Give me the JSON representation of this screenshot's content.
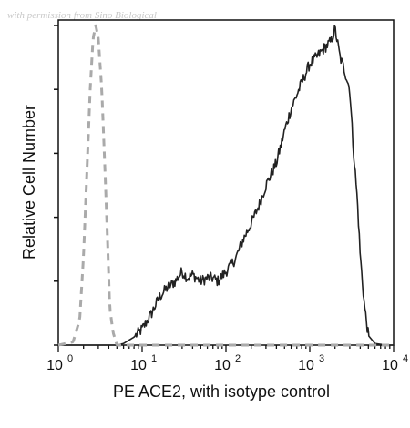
{
  "watermark": "with permission from Sino Biological",
  "chart_data": {
    "type": "line",
    "xlabel": "PE ACE2, with isotype control",
    "ylabel": "Relative Cell Number",
    "x_scale": "log",
    "xlim": [
      1,
      10000
    ],
    "ylim": [
      0,
      1
    ],
    "x_ticks": [
      {
        "base": "10",
        "exp": "0",
        "value": 1
      },
      {
        "base": "10",
        "exp": "1",
        "value": 10
      },
      {
        "base": "10",
        "exp": "2",
        "value": 100
      },
      {
        "base": "10",
        "exp": "3",
        "value": 1000
      },
      {
        "base": "10",
        "exp": "4",
        "value": 10000
      }
    ],
    "y_tick_count": 6,
    "grid": false,
    "series": [
      {
        "color": "#222222",
        "dash": "solid",
        "x": [
          1,
          3,
          5,
          6,
          8,
          10,
          13,
          16,
          20,
          25,
          30,
          35,
          40,
          50,
          60,
          70,
          80,
          100,
          130,
          160,
          200,
          250,
          300,
          400,
          500,
          600,
          800,
          1000,
          1200,
          1500,
          1800,
          2000,
          2300,
          2600,
          3000,
          3300,
          3700,
          4000,
          4500,
          5000,
          6000,
          8000,
          10000
        ],
        "y": [
          0,
          0,
          0,
          0.005,
          0.025,
          0.05,
          0.1,
          0.15,
          0.18,
          0.2,
          0.23,
          0.21,
          0.22,
          0.2,
          0.21,
          0.21,
          0.2,
          0.23,
          0.27,
          0.33,
          0.38,
          0.44,
          0.5,
          0.57,
          0.67,
          0.74,
          0.82,
          0.88,
          0.9,
          0.93,
          0.95,
          0.99,
          0.9,
          0.86,
          0.8,
          0.62,
          0.45,
          0.28,
          0.12,
          0.03,
          0.005,
          0,
          0
        ]
      },
      {
        "color": "#aaaaaa",
        "dash": "dashed",
        "x": [
          1,
          1.5,
          1.8,
          2,
          2.2,
          2.4,
          2.6,
          2.8,
          3.0,
          3.3,
          3.6,
          3.9,
          4.1,
          4.5,
          5,
          7,
          10,
          100,
          1000,
          10000
        ],
        "y": [
          0,
          0.01,
          0.08,
          0.28,
          0.55,
          0.8,
          0.96,
          1.0,
          0.96,
          0.8,
          0.55,
          0.3,
          0.12,
          0.04,
          0,
          0,
          0,
          0,
          0,
          0
        ]
      }
    ]
  }
}
